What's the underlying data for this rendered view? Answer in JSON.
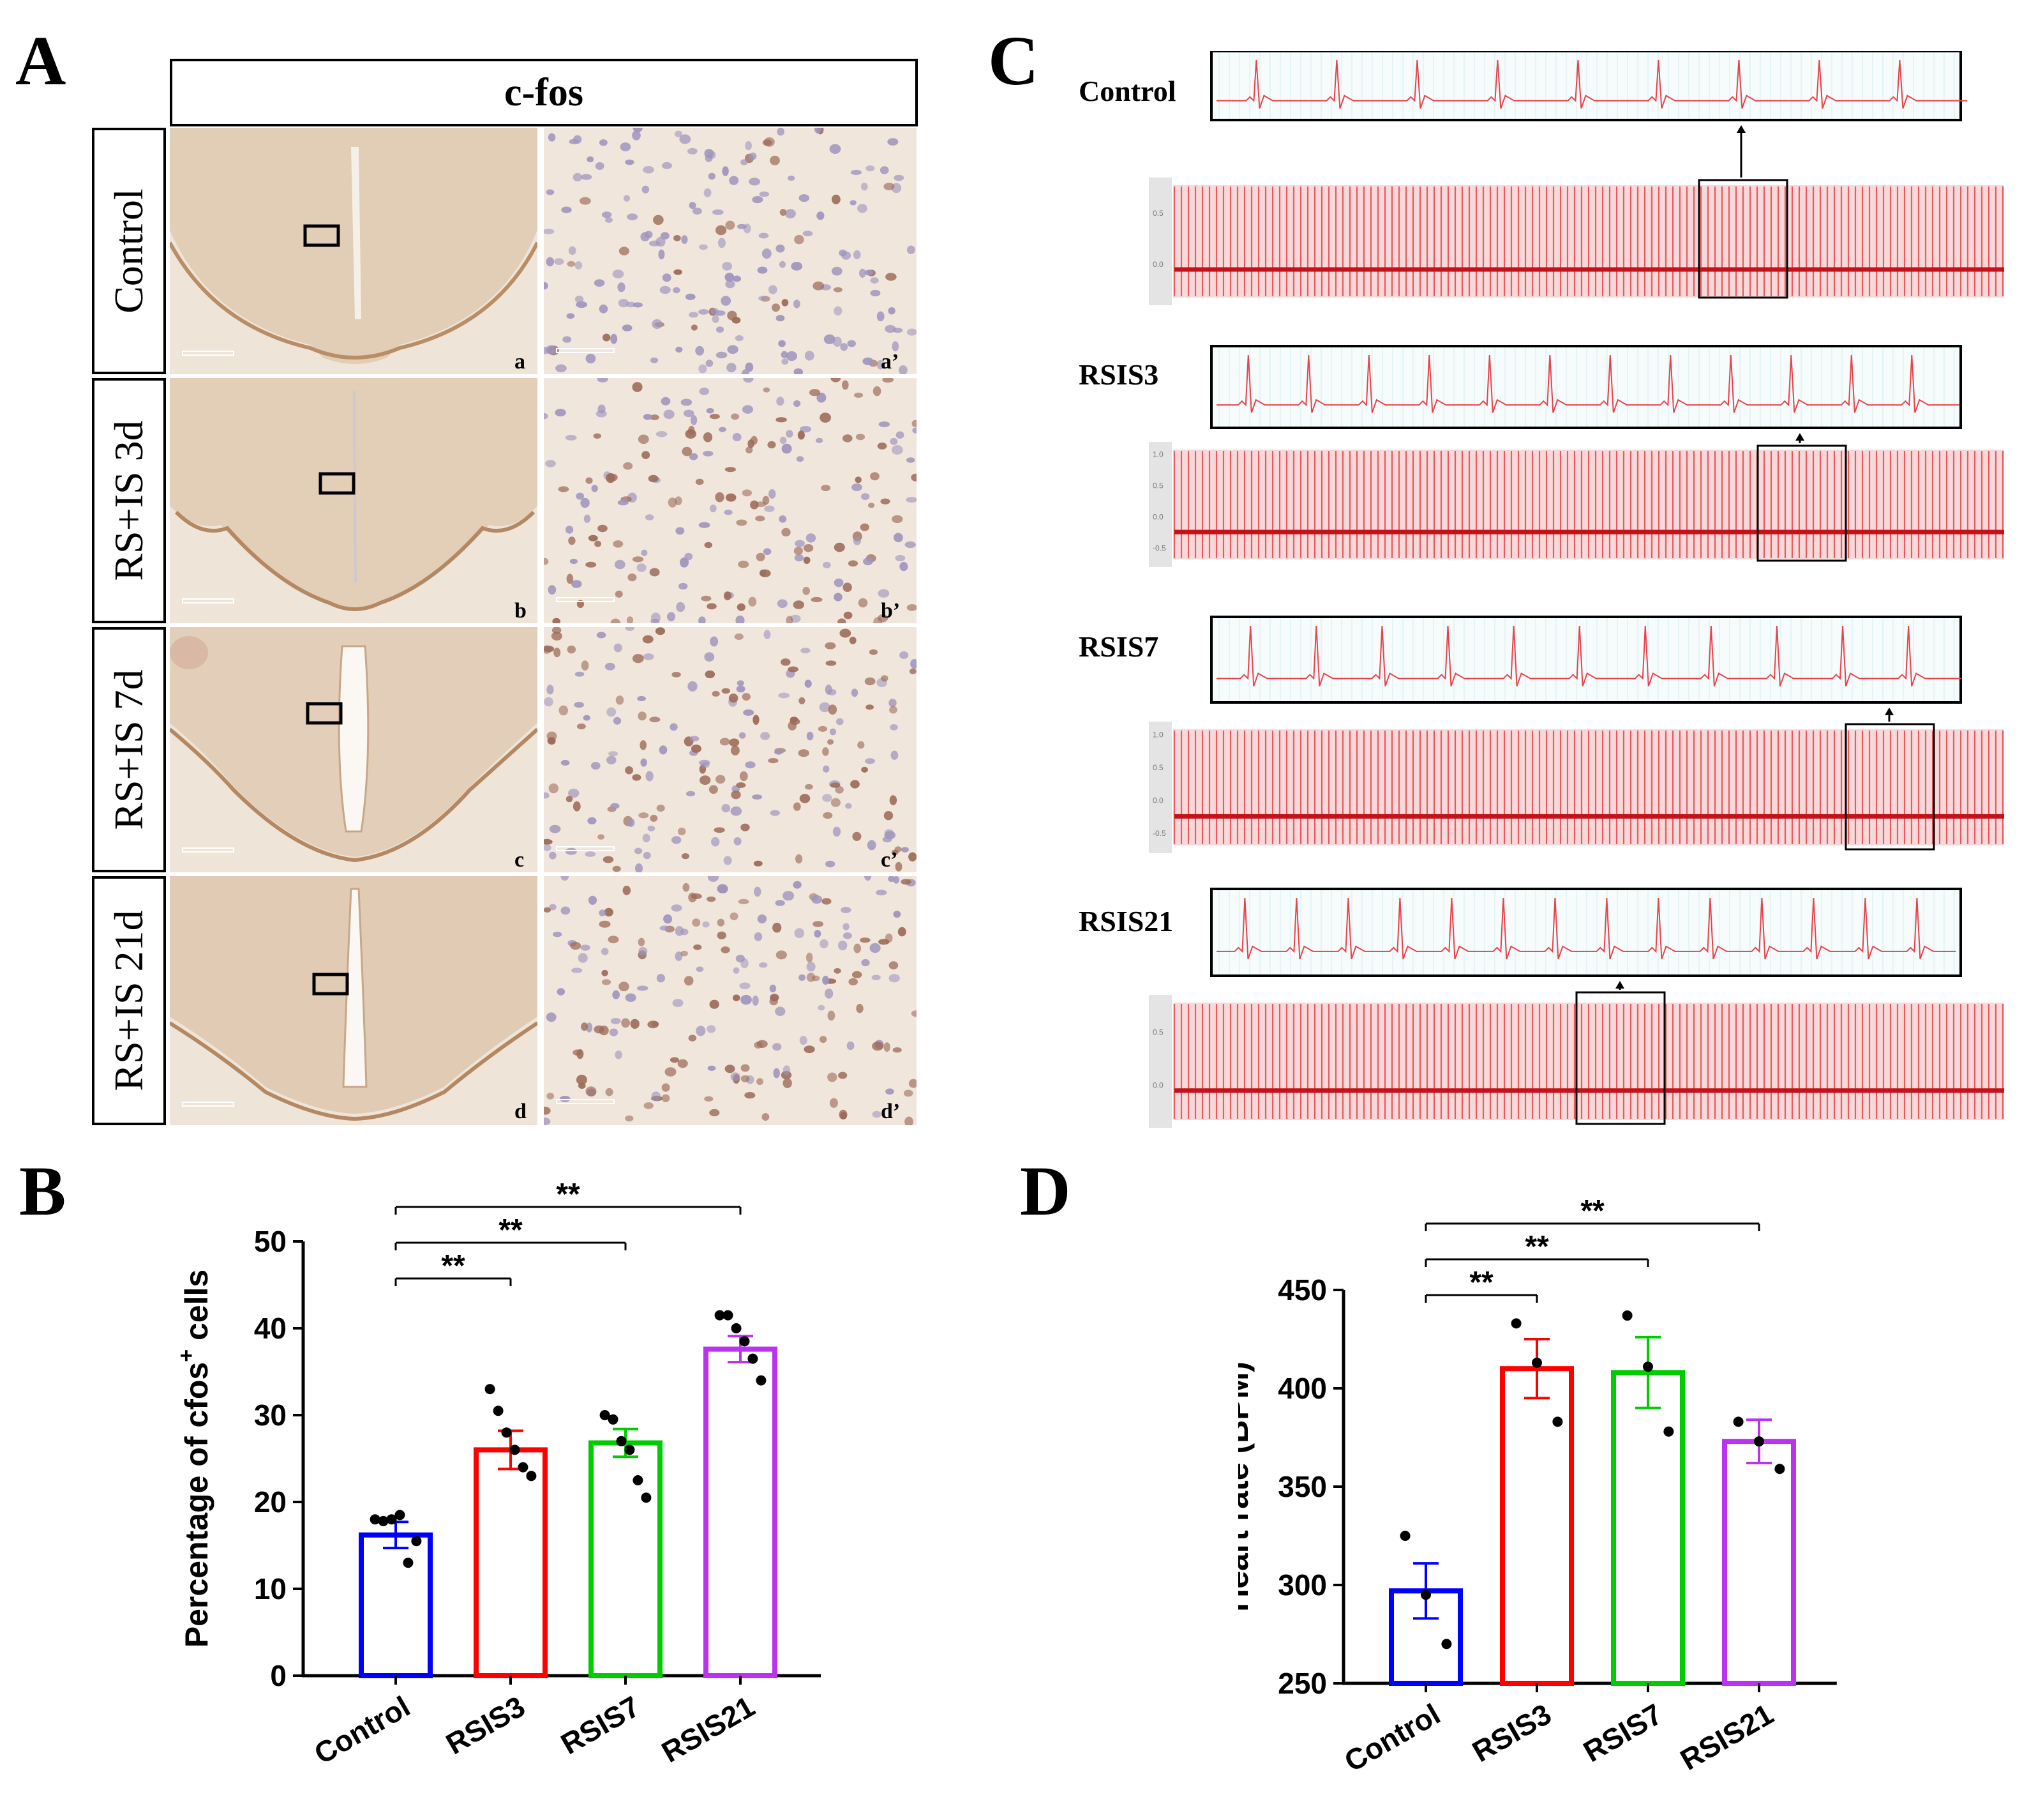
{
  "panels": {
    "A": "A",
    "B": "B",
    "C": "C",
    "D": "D"
  },
  "panel_a": {
    "header": "c-fos",
    "rows": [
      {
        "label": "Control",
        "left": "a",
        "right": "a’"
      },
      {
        "label": "RS+IS 3d",
        "left": "b",
        "right": "b’"
      },
      {
        "label": "RS+IS 7d",
        "left": "c",
        "right": "c’"
      },
      {
        "label": "RS+IS 21d",
        "left": "d",
        "right": "d’"
      }
    ]
  },
  "panel_c": {
    "rows": [
      {
        "label": "Control",
        "ticks": [
          "0.5",
          "0.0"
        ]
      },
      {
        "label": "RSIS3",
        "ticks": [
          "1.0",
          "0.5",
          "0.0",
          "-0.5"
        ]
      },
      {
        "label": "RSIS7",
        "ticks": [
          "1.0",
          "0.5",
          "0.0",
          "-0.5"
        ]
      },
      {
        "label": "RSIS21",
        "ticks": [
          "0.5",
          "0.0"
        ]
      }
    ]
  },
  "colors": {
    "control": "#0000ff",
    "rsis3": "#ff0000",
    "rsis7": "#00cc00",
    "rsis21": "#bb33ee",
    "ecg": "#e8434b",
    "tissue": "#e6d4c2"
  },
  "chart_data": [
    {
      "type": "bar",
      "id": "B",
      "ylabel": "Percentage of cfos",
      "ylabel_sup": "+",
      "ylabel_tail": " cells",
      "categories": [
        "Control",
        "RSIS3",
        "RSIS7",
        "RSIS21"
      ],
      "values": [
        16.2,
        26,
        26.8,
        37.6
      ],
      "errors": [
        1.5,
        2.2,
        1.6,
        1.5
      ],
      "points": [
        [
          18,
          17.8,
          18,
          18.5,
          13,
          15.5
        ],
        [
          33,
          30.5,
          28,
          26,
          24,
          23
        ],
        [
          30,
          29.5,
          27,
          26,
          22.5,
          20.5
        ],
        [
          41.5,
          41.5,
          40,
          38.5,
          36.5,
          34
        ]
      ],
      "ylim": [
        0,
        50
      ],
      "yticks": [
        0,
        10,
        20,
        30,
        40,
        50
      ],
      "significance": [
        {
          "from": 0,
          "to": 1,
          "label": "**"
        },
        {
          "from": 0,
          "to": 2,
          "label": "**"
        },
        {
          "from": 0,
          "to": 3,
          "label": "**"
        }
      ]
    },
    {
      "type": "bar",
      "id": "D",
      "ylabel": "Heart rate (BPM)",
      "categories": [
        "Control",
        "RSIS3",
        "RSIS7",
        "RSIS21"
      ],
      "values": [
        297,
        410,
        408,
        373
      ],
      "errors": [
        14,
        15,
        18,
        11
      ],
      "points": [
        [
          325,
          295,
          270
        ],
        [
          433,
          413,
          383
        ],
        [
          437,
          411,
          378
        ],
        [
          383,
          373,
          359
        ]
      ],
      "ylim": [
        250,
        450
      ],
      "yticks": [
        250,
        300,
        350,
        400,
        450
      ],
      "significance": [
        {
          "from": 0,
          "to": 1,
          "label": "**"
        },
        {
          "from": 0,
          "to": 2,
          "label": "**"
        },
        {
          "from": 0,
          "to": 3,
          "label": "**"
        }
      ]
    }
  ]
}
